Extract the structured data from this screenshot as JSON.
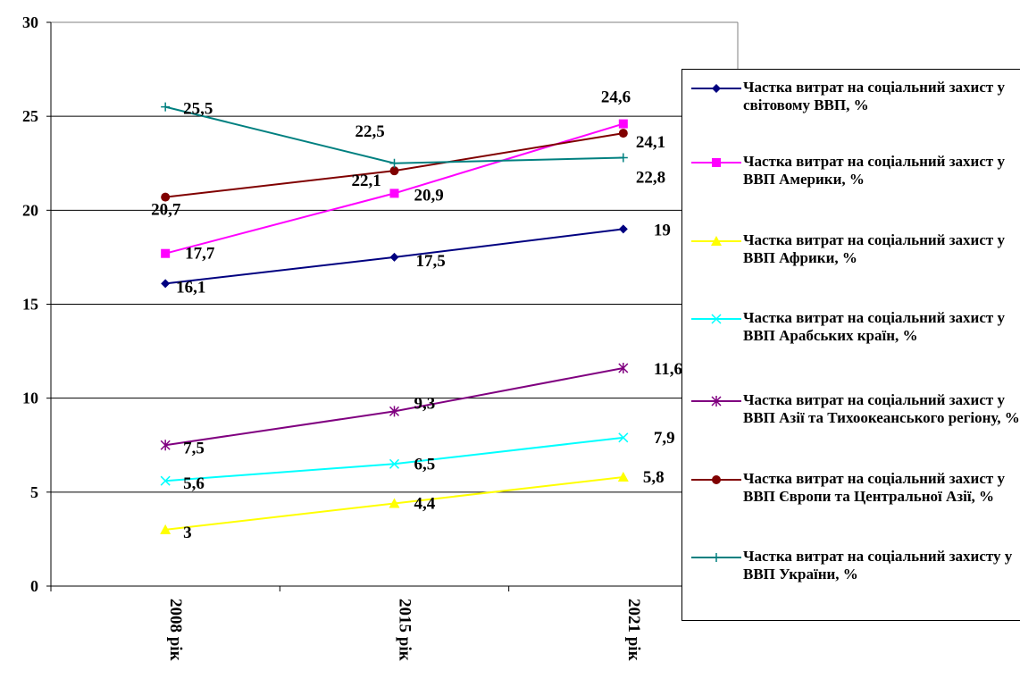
{
  "chart_data": {
    "type": "line",
    "categories": [
      "2008 рік",
      "2015 рік",
      "2021 рік"
    ],
    "ylim": [
      0,
      30
    ],
    "yticks": [
      0,
      5,
      10,
      15,
      20,
      25,
      30
    ],
    "grid": "horizontal",
    "legend_position": "right",
    "series": [
      {
        "name": "Частка витрат на соціальний захист у світовому ВВП, %",
        "values": [
          16.1,
          17.5,
          19
        ],
        "labels": [
          "16,1",
          "17,5",
          "19"
        ],
        "color": "#000080",
        "marker": "diamond"
      },
      {
        "name": "Частка витрат на соціальний захист у ВВП Америки, %",
        "values": [
          17.7,
          20.9,
          24.6
        ],
        "labels": [
          "17,7",
          "20,9",
          "24,6"
        ],
        "color": "#ff00ff",
        "marker": "square"
      },
      {
        "name": "Частка витрат на соціальний захист у ВВП Африки, %",
        "values": [
          3,
          4.4,
          5.8
        ],
        "labels": [
          "3",
          "4,4",
          "5,8"
        ],
        "color": "#ffff00",
        "marker": "triangle"
      },
      {
        "name": "Частка витрат на соціальний захист у ВВП Арабських країн, %",
        "values": [
          5.6,
          6.5,
          7.9
        ],
        "labels": [
          "5,6",
          "6,5",
          "7,9"
        ],
        "color": "#00ffff",
        "marker": "x"
      },
      {
        "name": "Частка витрат на соціальний захист у ВВП Азії та Тихоокеанського регіону, %",
        "values": [
          7.5,
          9.3,
          11.6
        ],
        "labels": [
          "7,5",
          "9,3",
          "11,6"
        ],
        "color": "#800080",
        "marker": "star"
      },
      {
        "name": "Частка витрат на соціальний захист у ВВП Європи та Центральної Азії, %",
        "values": [
          20.7,
          22.1,
          24.1
        ],
        "labels": [
          "20,7",
          "22,1",
          "24,1"
        ],
        "color": "#800000",
        "marker": "circle"
      },
      {
        "name": "Частка витрат на соціальний захисту у ВВП України, %",
        "values": [
          25.5,
          22.5,
          22.8
        ],
        "labels": [
          "25,5",
          "22,5",
          "22,8"
        ],
        "color": "#008080",
        "marker": "plus"
      }
    ]
  }
}
